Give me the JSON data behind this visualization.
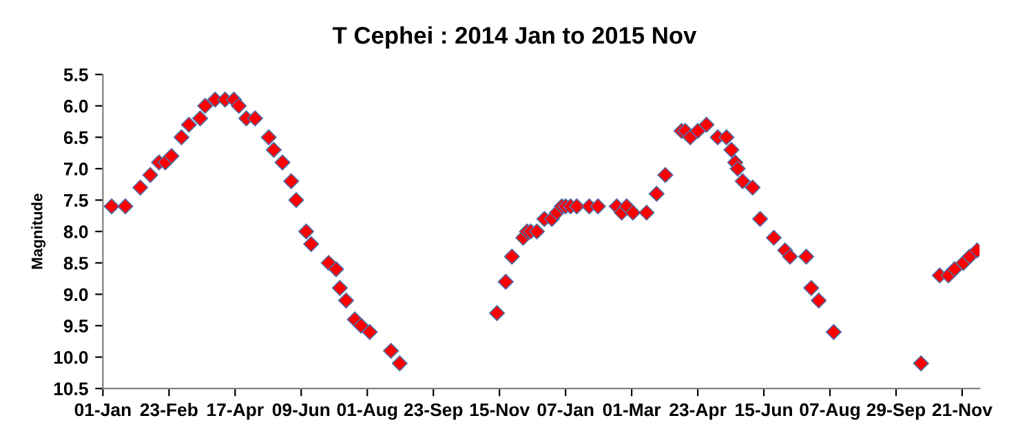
{
  "chart_data": {
    "type": "scatter",
    "title": "T Cephei : 2014 Jan to 2015 Nov",
    "ylabel": "Magnitude",
    "x": [
      "2014-01-08",
      "2014-01-19",
      "2014-01-31",
      "2014-02-08",
      "2014-02-15",
      "2014-02-20",
      "2014-02-25",
      "2014-03-05",
      "2014-03-11",
      "2014-03-20",
      "2014-03-24",
      "2014-04-01",
      "2014-04-09",
      "2014-04-16",
      "2014-04-20",
      "2014-04-26",
      "2014-05-03",
      "2014-05-14",
      "2014-05-18",
      "2014-05-25",
      "2014-06-01",
      "2014-06-05",
      "2014-06-13",
      "2014-06-17",
      "2014-07-01",
      "2014-07-07",
      "2014-07-10",
      "2014-07-15",
      "2014-07-22",
      "2014-07-27",
      "2014-08-03",
      "2014-08-20",
      "2014-08-27",
      "2014-11-13",
      "2014-11-20",
      "2014-11-25",
      "2014-12-04",
      "2014-12-07",
      "2014-12-10",
      "2014-12-15",
      "2014-12-21",
      "2014-12-27",
      "2014-12-31",
      "2015-01-04",
      "2015-01-07",
      "2015-01-11",
      "2015-01-16",
      "2015-01-26",
      "2015-02-02",
      "2015-02-17",
      "2015-02-21",
      "2015-02-25",
      "2015-03-02",
      "2015-03-13",
      "2015-03-21",
      "2015-03-28",
      "2015-04-10",
      "2015-04-13",
      "2015-04-17",
      "2015-04-23",
      "2015-04-30",
      "2015-05-09",
      "2015-05-16",
      "2015-05-20",
      "2015-05-23",
      "2015-05-25",
      "2015-05-29",
      "2015-06-06",
      "2015-06-12",
      "2015-06-23",
      "2015-07-02",
      "2015-07-06",
      "2015-07-19",
      "2015-07-23",
      "2015-07-29",
      "2015-08-10",
      "2015-10-19",
      "2015-11-03",
      "2015-11-10",
      "2015-11-15",
      "2015-11-22",
      "2015-11-27",
      "2015-12-03"
    ],
    "series": [
      {
        "color": "#ff0000",
        "values": [
          7.6,
          7.6,
          7.3,
          7.1,
          6.9,
          6.9,
          6.8,
          6.5,
          6.3,
          6.2,
          6.0,
          5.9,
          5.9,
          5.9,
          6.0,
          6.2,
          6.2,
          6.5,
          6.7,
          6.9,
          7.2,
          7.5,
          8.0,
          8.2,
          8.5,
          8.6,
          8.9,
          9.1,
          9.4,
          9.5,
          9.6,
          9.9,
          10.1,
          9.3,
          8.8,
          8.4,
          8.1,
          8.0,
          8.0,
          8.0,
          7.8,
          7.8,
          7.7,
          7.6,
          7.6,
          7.6,
          7.6,
          7.6,
          7.6,
          7.6,
          7.7,
          7.6,
          7.7,
          7.7,
          7.4,
          7.1,
          6.4,
          6.4,
          6.5,
          6.4,
          6.3,
          6.5,
          6.5,
          6.7,
          6.9,
          7.0,
          7.2,
          7.3,
          7.8,
          8.1,
          8.3,
          8.4,
          8.4,
          8.9,
          9.1,
          9.6,
          10.1,
          8.7,
          8.7,
          8.6,
          8.5,
          8.4,
          8.3
        ]
      }
    ],
    "marker": "diamond",
    "grid": false,
    "xlim": [
      "2014-01-01",
      "2015-12-05"
    ],
    "xticks": [
      {
        "value": "2014-01-01",
        "label": "01-Jan"
      },
      {
        "value": "2014-02-23",
        "label": "23-Feb"
      },
      {
        "value": "2014-04-17",
        "label": "17-Apr"
      },
      {
        "value": "2014-06-09",
        "label": "09-Jun"
      },
      {
        "value": "2014-08-01",
        "label": "01-Aug"
      },
      {
        "value": "2014-09-23",
        "label": "23-Sep"
      },
      {
        "value": "2014-11-15",
        "label": "15-Nov"
      },
      {
        "value": "2015-01-07",
        "label": "07-Jan"
      },
      {
        "value": "2015-03-01",
        "label": "01-Mar"
      },
      {
        "value": "2015-04-23",
        "label": "23-Apr"
      },
      {
        "value": "2015-06-15",
        "label": "15-Jun"
      },
      {
        "value": "2015-08-07",
        "label": "07-Aug"
      },
      {
        "value": "2015-09-29",
        "label": "29-Sep"
      },
      {
        "value": "2015-11-21",
        "label": "21-Nov"
      }
    ],
    "ylim": [
      10.5,
      5.5
    ],
    "yticks": [
      5.5,
      {
        "value": 6,
        "label": "6.0"
      },
      6.5,
      {
        "value": 7,
        "label": "7.0"
      },
      7.5,
      {
        "value": 8,
        "label": "8.0"
      },
      8.5,
      {
        "value": 9,
        "label": "9.0"
      },
      9.5,
      {
        "value": 10,
        "label": "10.0"
      },
      10.5
    ]
  }
}
